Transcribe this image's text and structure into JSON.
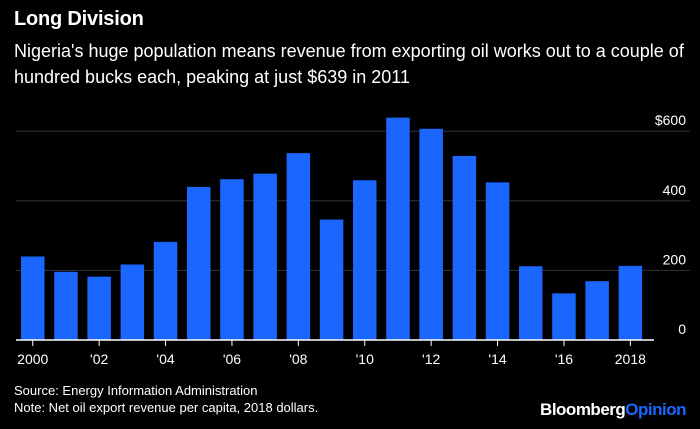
{
  "header": {
    "title": "Long Division",
    "subtitle": "Nigeria's huge population means revenue from exporting oil works out to a couple of hundred bucks each, peaking at just $639 in 2011"
  },
  "footer": {
    "source": "Source: Energy Information Administration",
    "note": "Note: Net oil export revenue per capita, 2018 dollars.",
    "brand_part1": "Bloomberg",
    "brand_part2": "Opinion"
  },
  "colors": {
    "bar": "#1a66ff",
    "background": "#000000",
    "text": "#ffffff",
    "axis": "#ffffff",
    "gridline": "#333333"
  },
  "chart_data": {
    "type": "bar",
    "title": "Long Division",
    "xlabel": "",
    "ylabel": "",
    "categories": [
      "2000",
      "2001",
      "2002",
      "2003",
      "2004",
      "2005",
      "2006",
      "2007",
      "2008",
      "2009",
      "2010",
      "2011",
      "2012",
      "2013",
      "2014",
      "2015",
      "2016",
      "2017",
      "2018"
    ],
    "values": [
      240,
      196,
      182,
      217,
      282,
      440,
      462,
      478,
      537,
      346,
      459,
      639,
      607,
      529,
      453,
      212,
      134,
      169,
      213
    ],
    "ylim": [
      0,
      680
    ],
    "yticks": [
      {
        "value": 0,
        "label": "0"
      },
      {
        "value": 200,
        "label": "200"
      },
      {
        "value": 400,
        "label": "400"
      },
      {
        "value": 600,
        "label": "$600"
      }
    ],
    "xticks": [
      {
        "index": 0,
        "label": "2000"
      },
      {
        "index": 2,
        "label": "'02"
      },
      {
        "index": 4,
        "label": "'04"
      },
      {
        "index": 6,
        "label": "'06"
      },
      {
        "index": 8,
        "label": "'08"
      },
      {
        "index": 10,
        "label": "'10"
      },
      {
        "index": 12,
        "label": "'12"
      },
      {
        "index": 14,
        "label": "'14"
      },
      {
        "index": 16,
        "label": "'16"
      },
      {
        "index": 18,
        "label": "2018"
      }
    ]
  }
}
